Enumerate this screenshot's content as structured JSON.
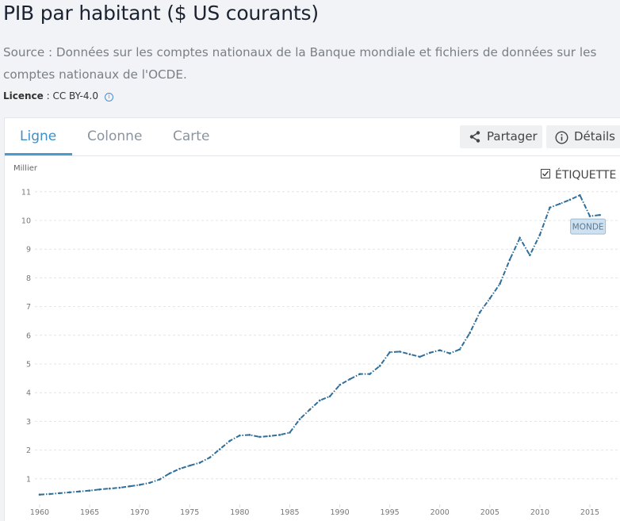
{
  "header": {
    "title": "PIB par habitant ($ US courants)",
    "source": "Source : Données sur les comptes nationaux de la Banque mondiale et fichiers de données sur les comptes nationaux de l'OCDE.",
    "licence_label": "Licence",
    "licence_value": " : CC BY-4.0"
  },
  "tabs": [
    {
      "label": "Ligne",
      "active": true
    },
    {
      "label": "Colonne",
      "active": false
    },
    {
      "label": "Carte",
      "active": false
    }
  ],
  "actions": {
    "share_label": "Partager",
    "details_label": "Détails",
    "label_toggle": "ÉTIQUETTE",
    "label_toggle_checked": true
  },
  "colors": {
    "line": "#2f6f9a",
    "accent": "#3e8fc8"
  },
  "chart_data": {
    "type": "line",
    "title": "PIB par habitant ($ US courants)",
    "ylabel": "Millier",
    "xlabel": "",
    "ylim": [
      0,
      11
    ],
    "xlim": [
      1960,
      2016
    ],
    "yticks": [
      "1",
      "2",
      "3",
      "4",
      "5",
      "6",
      "7",
      "8",
      "9",
      "10",
      "11"
    ],
    "xticks": [
      "1960",
      "1965",
      "1970",
      "1975",
      "1980",
      "1985",
      "1990",
      "1995",
      "2000",
      "2005",
      "2010",
      "2015"
    ],
    "grid": true,
    "series": [
      {
        "name": "MONDE",
        "x": [
          1960,
          1961,
          1962,
          1963,
          1964,
          1965,
          1966,
          1967,
          1968,
          1969,
          1970,
          1971,
          1972,
          1973,
          1974,
          1975,
          1976,
          1977,
          1978,
          1979,
          1980,
          1981,
          1982,
          1983,
          1984,
          1985,
          1986,
          1987,
          1988,
          1989,
          1990,
          1991,
          1992,
          1993,
          1994,
          1995,
          1996,
          1997,
          1998,
          1999,
          2000,
          2001,
          2002,
          2003,
          2004,
          2005,
          2006,
          2007,
          2008,
          2009,
          2010,
          2011,
          2012,
          2013,
          2014,
          2015,
          2016
        ],
        "values": [
          0.45,
          0.47,
          0.5,
          0.53,
          0.56,
          0.59,
          0.63,
          0.66,
          0.69,
          0.74,
          0.79,
          0.86,
          0.98,
          1.19,
          1.35,
          1.46,
          1.56,
          1.74,
          2.03,
          2.32,
          2.51,
          2.53,
          2.46,
          2.49,
          2.53,
          2.61,
          3.08,
          3.41,
          3.73,
          3.87,
          4.27,
          4.47,
          4.65,
          4.65,
          4.93,
          5.41,
          5.43,
          5.34,
          5.25,
          5.39,
          5.48,
          5.37,
          5.51,
          6.08,
          6.8,
          7.28,
          7.79,
          8.64,
          9.39,
          8.79,
          9.5,
          10.45,
          10.58,
          10.72,
          10.88,
          10.15,
          10.19
        ]
      }
    ]
  }
}
